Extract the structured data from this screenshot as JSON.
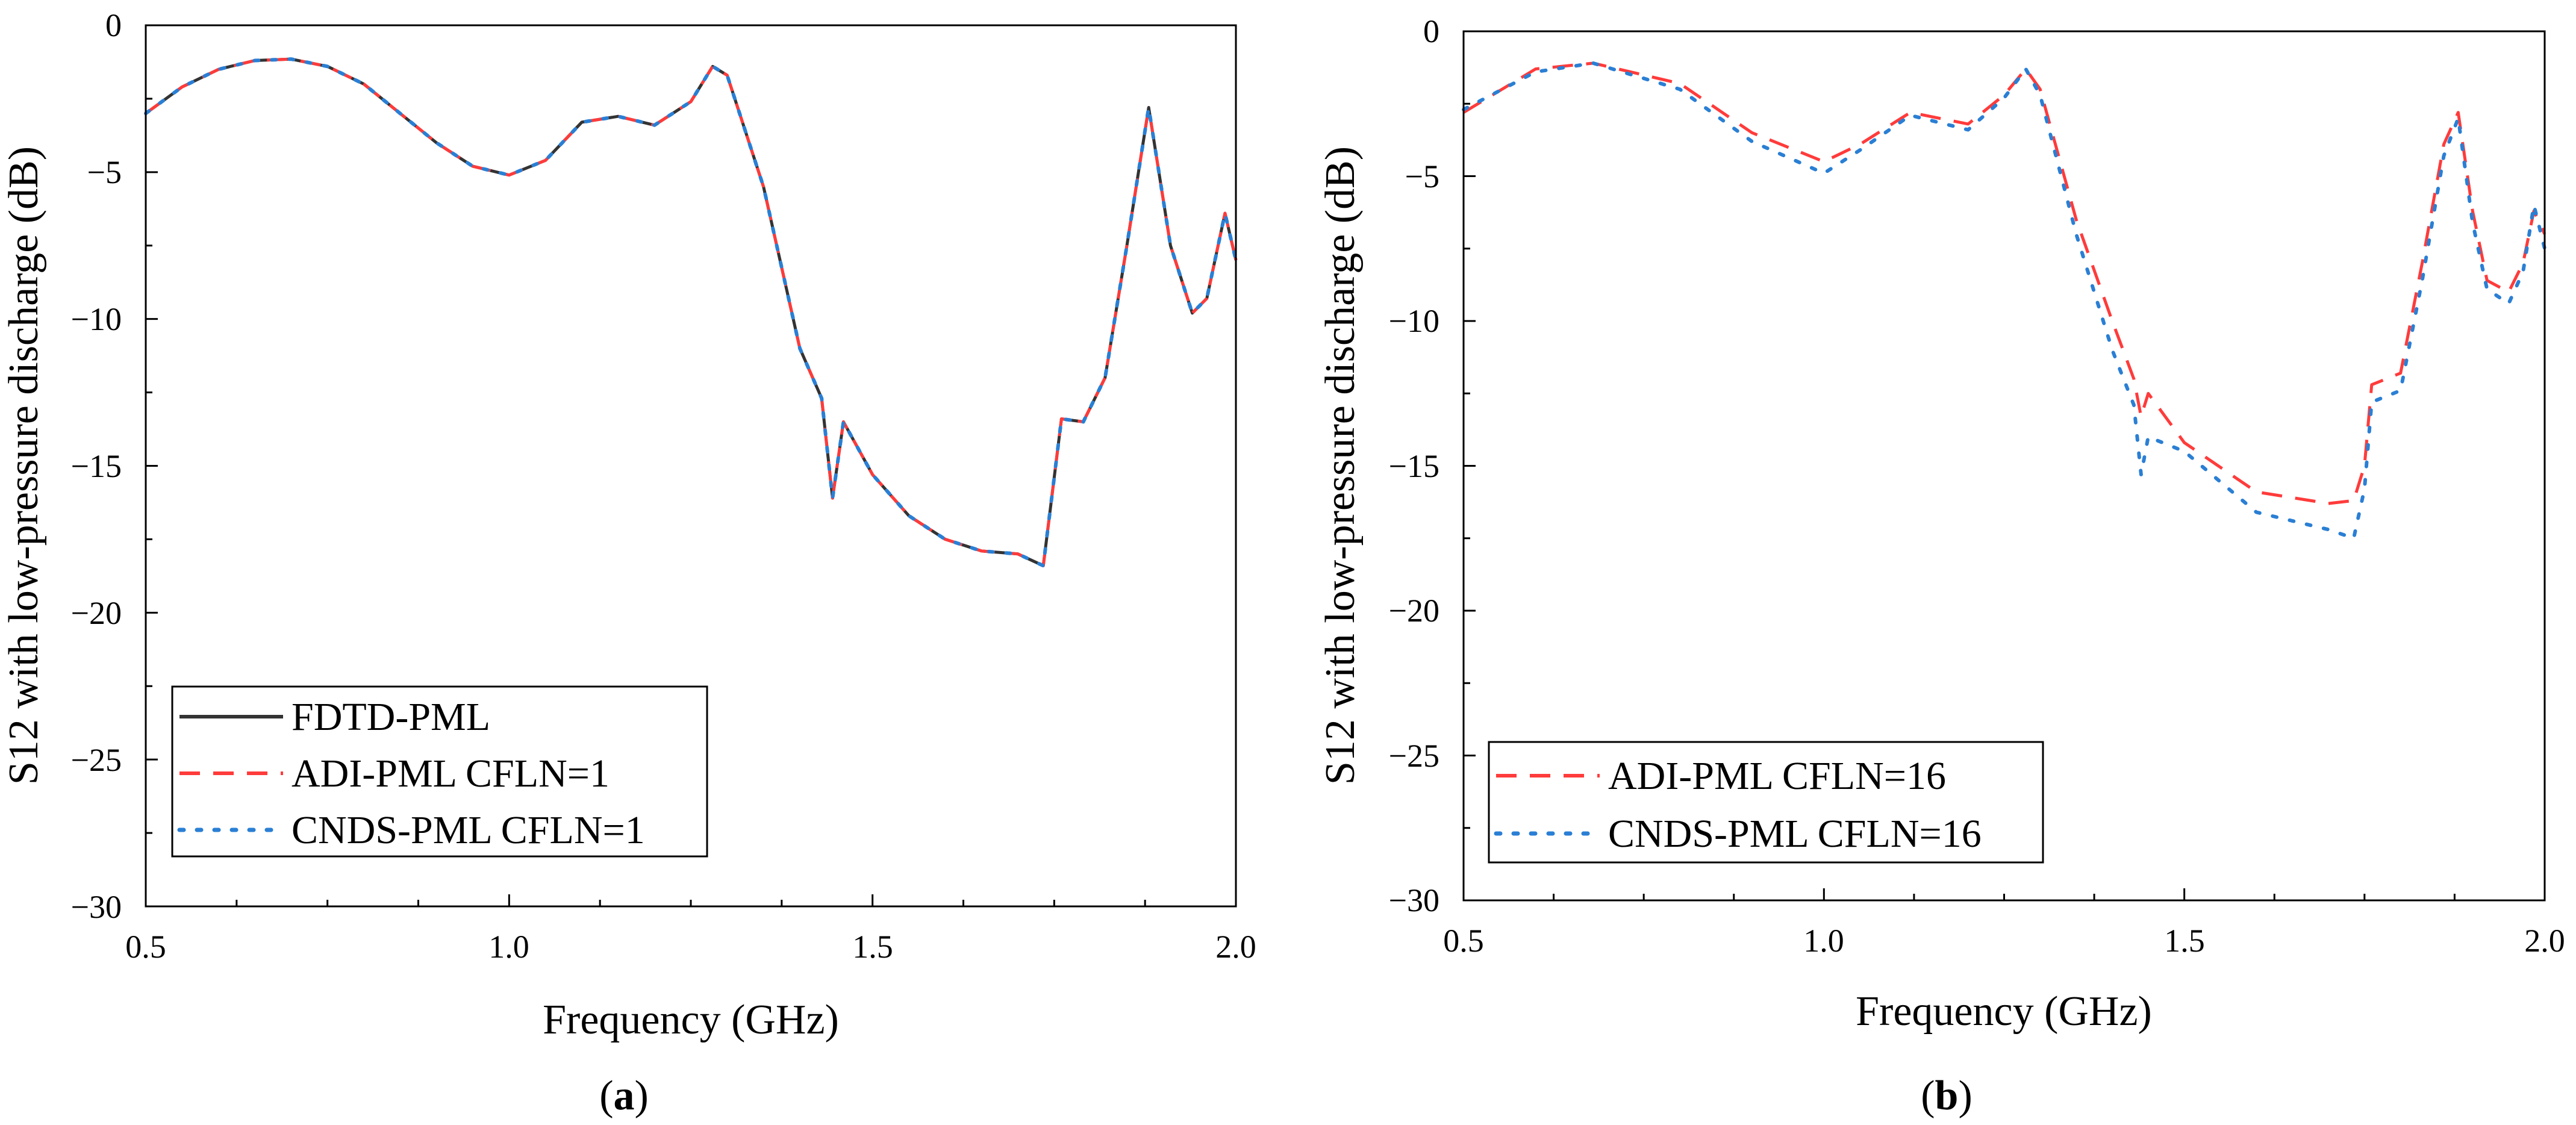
{
  "chart_data": [
    {
      "type": "line",
      "panel": "a",
      "caption": {
        "open": "(",
        "letter": "a",
        "close": ")"
      },
      "xlabel": "Frequency (GHz)",
      "ylabel": "S12 with low-pressure discharge (dB)",
      "xlim": [
        0.5,
        2.0
      ],
      "ylim": [
        -30,
        0
      ],
      "xticks": [
        0.5,
        1.0,
        1.5,
        2.0
      ],
      "xtick_labels": [
        "0.5",
        "1.0",
        "1.5",
        "2.0"
      ],
      "yticks": [
        0,
        -5,
        -10,
        -15,
        -20,
        -25,
        -30
      ],
      "ytick_labels": [
        "0",
        "−5",
        "−10",
        "−15",
        "−20",
        "−25",
        "−30"
      ],
      "legend_position": "bottom-left",
      "series": [
        {
          "name": "FDTD-PML",
          "color": "#333333",
          "style": "solid",
          "x": [
            0.5,
            0.55,
            0.6,
            0.65,
            0.7,
            0.75,
            0.8,
            0.85,
            0.9,
            0.95,
            1.0,
            1.05,
            1.1,
            1.15,
            1.2,
            1.25,
            1.28,
            1.3,
            1.35,
            1.4,
            1.43,
            1.445,
            1.46,
            1.5,
            1.55,
            1.6,
            1.65,
            1.7,
            1.735,
            1.76,
            1.79,
            1.82,
            1.85,
            1.88,
            1.91,
            1.94,
            1.96,
            1.985,
            2.0
          ],
          "y": [
            -3.0,
            -2.1,
            -1.5,
            -1.2,
            -1.15,
            -1.4,
            -2.0,
            -3.0,
            -4.0,
            -4.8,
            -5.1,
            -4.6,
            -3.3,
            -3.1,
            -3.4,
            -2.6,
            -1.4,
            -1.7,
            -5.5,
            -11.0,
            -12.7,
            -16.1,
            -13.5,
            -15.3,
            -16.7,
            -17.5,
            -17.9,
            -18.0,
            -18.4,
            -13.4,
            -13.5,
            -12.0,
            -7.5,
            -2.8,
            -7.5,
            -9.8,
            -9.3,
            -6.4,
            -8.0
          ]
        },
        {
          "name": "ADI-PML CFLN=1",
          "color": "#ff3b3b",
          "style": "dashed",
          "x": [
            0.5,
            0.55,
            0.6,
            0.65,
            0.7,
            0.75,
            0.8,
            0.85,
            0.9,
            0.95,
            1.0,
            1.05,
            1.1,
            1.15,
            1.2,
            1.25,
            1.28,
            1.3,
            1.35,
            1.4,
            1.43,
            1.445,
            1.46,
            1.5,
            1.55,
            1.6,
            1.65,
            1.7,
            1.735,
            1.76,
            1.79,
            1.82,
            1.85,
            1.88,
            1.91,
            1.94,
            1.96,
            1.985,
            2.0
          ],
          "y": [
            -3.0,
            -2.1,
            -1.5,
            -1.2,
            -1.15,
            -1.4,
            -2.0,
            -3.0,
            -4.0,
            -4.8,
            -5.1,
            -4.6,
            -3.3,
            -3.1,
            -3.4,
            -2.6,
            -1.4,
            -1.7,
            -5.5,
            -11.0,
            -12.7,
            -16.1,
            -13.5,
            -15.3,
            -16.7,
            -17.5,
            -17.9,
            -18.0,
            -18.4,
            -13.4,
            -13.5,
            -12.0,
            -7.5,
            -2.8,
            -7.5,
            -9.8,
            -9.3,
            -6.4,
            -8.0
          ]
        },
        {
          "name": "CNDS-PML CFLN=1",
          "color": "#2a7fd4",
          "style": "dotted",
          "x": [
            0.5,
            0.55,
            0.6,
            0.65,
            0.7,
            0.75,
            0.8,
            0.85,
            0.9,
            0.95,
            1.0,
            1.05,
            1.1,
            1.15,
            1.2,
            1.25,
            1.28,
            1.3,
            1.35,
            1.4,
            1.43,
            1.445,
            1.46,
            1.5,
            1.55,
            1.6,
            1.65,
            1.7,
            1.735,
            1.76,
            1.79,
            1.82,
            1.85,
            1.88,
            1.91,
            1.94,
            1.96,
            1.985,
            2.0
          ],
          "y": [
            -3.0,
            -2.1,
            -1.5,
            -1.2,
            -1.15,
            -1.4,
            -2.0,
            -3.0,
            -4.0,
            -4.8,
            -5.1,
            -4.6,
            -3.3,
            -3.1,
            -3.4,
            -2.6,
            -1.4,
            -1.7,
            -5.5,
            -11.0,
            -12.7,
            -16.1,
            -13.5,
            -15.3,
            -16.7,
            -17.5,
            -17.9,
            -18.0,
            -18.4,
            -13.4,
            -13.5,
            -12.0,
            -7.5,
            -2.8,
            -7.5,
            -9.8,
            -9.3,
            -6.4,
            -8.0
          ]
        }
      ]
    },
    {
      "type": "line",
      "panel": "b",
      "caption": {
        "open": "(",
        "letter": "b",
        "close": ")"
      },
      "xlabel": "Frequency (GHz)",
      "ylabel": "S12 with low-pressure discharge (dB)",
      "xlim": [
        0.5,
        2.0
      ],
      "ylim": [
        -30,
        0
      ],
      "xticks": [
        0.5,
        1.0,
        1.5,
        2.0
      ],
      "xtick_labels": [
        "0.5",
        "1.0",
        "1.5",
        "2.0"
      ],
      "yticks": [
        0,
        -5,
        -10,
        -15,
        -20,
        -25,
        -30
      ],
      "ytick_labels": [
        "0",
        "−5",
        "−10",
        "−15",
        "−20",
        "−25",
        "−30"
      ],
      "legend_position": "bottom-left",
      "series": [
        {
          "name": "ADI-PML CFLN=16",
          "color": "#ff3b3b",
          "style": "dashed",
          "x": [
            0.5,
            0.6,
            0.68,
            0.8,
            0.9,
            1.0,
            1.05,
            1.12,
            1.2,
            1.25,
            1.28,
            1.3,
            1.35,
            1.4,
            1.43,
            1.44,
            1.45,
            1.5,
            1.6,
            1.7,
            1.735,
            1.75,
            1.76,
            1.8,
            1.83,
            1.86,
            1.88,
            1.9,
            1.92,
            1.95,
            1.97,
            1.985,
            2.0
          ],
          "y": [
            -2.8,
            -1.3,
            -1.1,
            -1.8,
            -3.5,
            -4.5,
            -3.9,
            -2.8,
            -3.2,
            -2.2,
            -1.3,
            -2.0,
            -6.5,
            -10.0,
            -12.0,
            -13.3,
            -12.5,
            -14.2,
            -15.9,
            -16.3,
            -16.2,
            -15.0,
            -12.2,
            -11.8,
            -8.0,
            -3.9,
            -2.8,
            -6.2,
            -8.6,
            -9.0,
            -8.0,
            -6.2,
            -7.0
          ]
        },
        {
          "name": "CNDS-PML CFLN=16",
          "color": "#2a7fd4",
          "style": "dotted",
          "x": [
            0.5,
            0.6,
            0.68,
            0.8,
            0.9,
            1.0,
            1.05,
            1.12,
            1.2,
            1.25,
            1.28,
            1.3,
            1.35,
            1.4,
            1.43,
            1.44,
            1.45,
            1.5,
            1.6,
            1.7,
            1.735,
            1.75,
            1.76,
            1.8,
            1.83,
            1.86,
            1.88,
            1.9,
            1.92,
            1.95,
            1.97,
            1.985,
            2.0
          ],
          "y": [
            -2.7,
            -1.4,
            -1.1,
            -2.0,
            -3.8,
            -4.9,
            -4.1,
            -2.9,
            -3.4,
            -2.3,
            -1.3,
            -2.2,
            -7.0,
            -11.0,
            -12.9,
            -15.3,
            -14.0,
            -14.5,
            -16.6,
            -17.2,
            -17.5,
            -15.8,
            -12.8,
            -12.4,
            -8.6,
            -4.3,
            -3.0,
            -6.6,
            -8.9,
            -9.4,
            -8.3,
            -6.0,
            -7.5
          ]
        }
      ]
    }
  ]
}
